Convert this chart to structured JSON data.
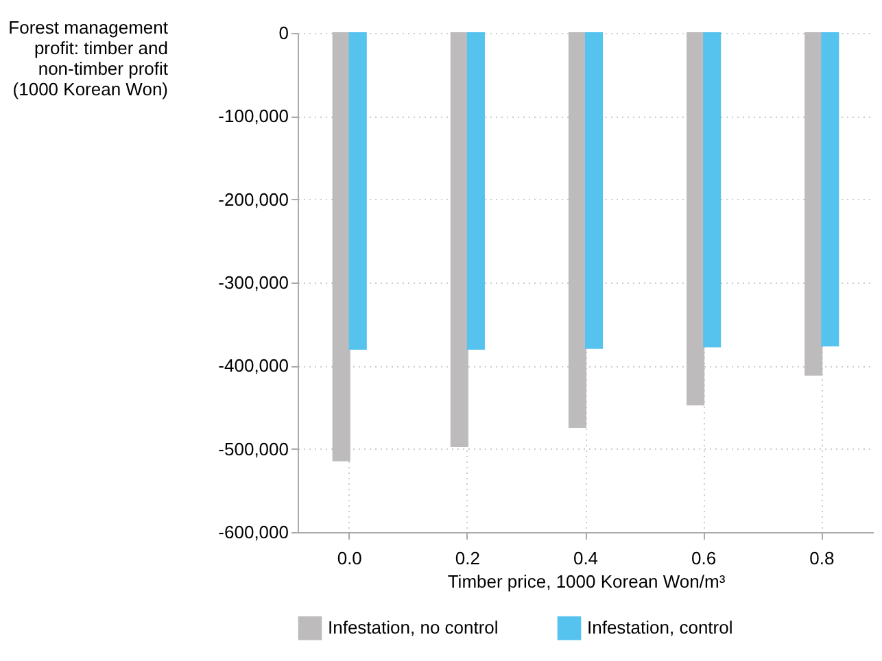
{
  "chart_data": {
    "type": "bar",
    "xlabel": "Timber price, 1000 Korean Won/m³",
    "ylabel": "Forest management\nprofit: timber and\nnon-timber profit\n(1000 Korean Won)",
    "categories": [
      "0.0",
      "0.2",
      "0.4",
      "0.6",
      "0.8"
    ],
    "series": [
      {
        "name": "Infestation, no control",
        "color": "#bdbbbb",
        "values": [
          -514000,
          -497000,
          -474000,
          -447000,
          -411000
        ]
      },
      {
        "name": "Infestation, control",
        "color": "#56c3ef",
        "values": [
          -380000,
          -380000,
          -379000,
          -377000,
          -376000
        ]
      }
    ],
    "ylim": [
      -600000,
      0
    ],
    "yticks": [
      {
        "value": -600000,
        "label": "-600,000"
      },
      {
        "value": -500000,
        "label": "-500,000"
      },
      {
        "value": -400000,
        "label": "-400,000"
      },
      {
        "value": -300000,
        "label": "-300,000"
      },
      {
        "value": -200000,
        "label": "-200,000"
      },
      {
        "value": -100000,
        "label": "-100,000"
      },
      0
    ],
    "grid": true,
    "line_style": "dotted",
    "legend": "bottom"
  }
}
